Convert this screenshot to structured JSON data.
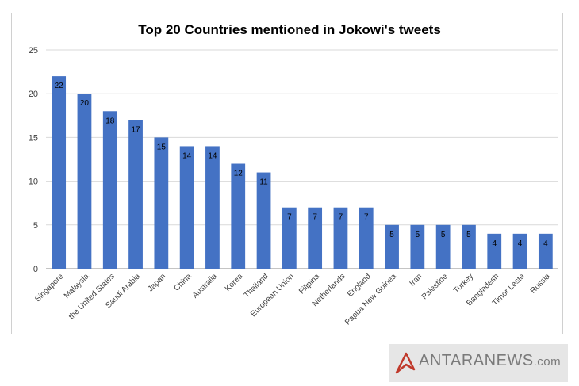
{
  "chart_data": {
    "type": "bar",
    "title": "Top 20 Countries mentioned in Jokowi's tweets",
    "xlabel": "",
    "ylabel": "",
    "ylim": [
      0,
      25
    ],
    "yticks": [
      0,
      5,
      10,
      15,
      20,
      25
    ],
    "grid": true,
    "legend": "none",
    "bar_color": "#4472c4",
    "categories": [
      "Singapore",
      "Malaysia",
      "the United States",
      "Saudi Arabia",
      "Japan",
      "China",
      "Australia",
      "Korea",
      "Thailand",
      "European Union",
      "Filipina",
      "Netherlands",
      "England",
      "Papua New Guinea",
      "Iran",
      "Palestine",
      "Turkey",
      "Bangladesh",
      "Timor Leste",
      "Russia"
    ],
    "values": [
      22,
      20,
      18,
      17,
      15,
      14,
      14,
      12,
      11,
      7,
      7,
      7,
      7,
      5,
      5,
      5,
      5,
      4,
      4,
      4
    ]
  },
  "watermark": {
    "text": "ANTARANEWS",
    "suffix": ".com",
    "icon": "antara-logo-icon"
  }
}
